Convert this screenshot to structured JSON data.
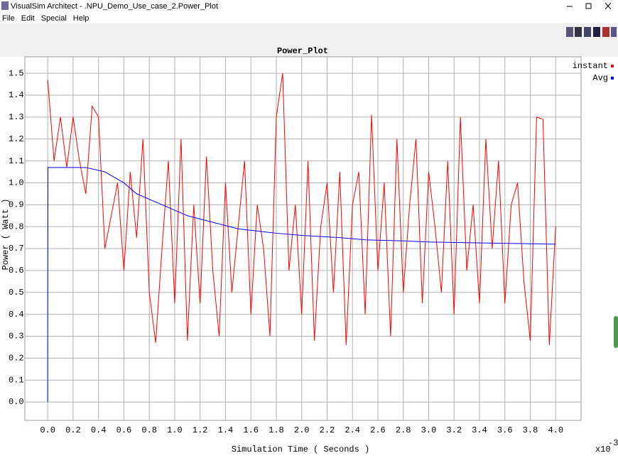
{
  "window": {
    "title": "VisualSim Architect - .NPU_Demo_Use_case_2.Power_Plot"
  },
  "menu": [
    "File",
    "Edit",
    "Special",
    "Help"
  ],
  "chart_data": {
    "type": "line",
    "title": "Power_Plot",
    "x_label": "Simulation Time ( Seconds )",
    "y_label": "Power ( Watt )",
    "x_multiplier": "x10",
    "x_exponent": "-3",
    "xlim": [
      -0.18,
      4.2
    ],
    "ylim": [
      -0.084,
      1.575
    ],
    "grid": true,
    "legend": "top-right",
    "xticks": [
      {
        "value": 0,
        "label": "0.0"
      },
      0.2,
      0.4,
      0.6,
      0.8,
      {
        "value": 1,
        "label": "1.0"
      },
      1.2,
      1.4,
      1.6,
      1.8,
      {
        "value": 2,
        "label": "2.0"
      },
      2.2,
      2.4,
      2.6,
      2.8,
      {
        "value": 3,
        "label": "3.0"
      },
      3.2,
      3.4,
      3.6,
      3.8,
      {
        "value": 4,
        "label": "4.0"
      }
    ],
    "yticks": [
      {
        "value": 0,
        "label": "0.0"
      },
      0.1,
      0.2,
      0.3,
      0.4,
      0.5,
      0.6,
      0.7,
      0.8,
      0.9,
      {
        "value": 1,
        "label": "1.0"
      },
      1.1,
      1.2,
      1.3,
      1.4,
      1.5
    ],
    "series": [
      {
        "name": "instant",
        "color": "#ff0000",
        "x": [
          0,
          0.05,
          0.1,
          0.15,
          0.2,
          0.25,
          0.3,
          0.35,
          0.4,
          0.45,
          0.5,
          0.55,
          0.6,
          0.65,
          0.7,
          0.75,
          0.8,
          0.85,
          0.9,
          0.95,
          1.0,
          1.05,
          1.1,
          1.15,
          1.2,
          1.25,
          1.3,
          1.35,
          1.4,
          1.45,
          1.5,
          1.55,
          1.6,
          1.65,
          1.7,
          1.75,
          1.8,
          1.85,
          1.9,
          1.95,
          2.0,
          2.05,
          2.1,
          2.15,
          2.2,
          2.25,
          2.3,
          2.35,
          2.4,
          2.45,
          2.5,
          2.55,
          2.6,
          2.65,
          2.7,
          2.75,
          2.8,
          2.85,
          2.9,
          2.95,
          3.0,
          3.05,
          3.1,
          3.15,
          3.2,
          3.25,
          3.3,
          3.35,
          3.4,
          3.45,
          3.5,
          3.55,
          3.6,
          3.65,
          3.7,
          3.75,
          3.8,
          3.85,
          3.9,
          3.95,
          4.0
        ],
        "values": [
          1.47,
          1.1,
          1.3,
          1.07,
          1.3,
          1.1,
          0.95,
          1.35,
          1.3,
          0.7,
          0.85,
          1.0,
          0.6,
          1.05,
          0.75,
          1.2,
          0.5,
          0.27,
          0.7,
          1.1,
          0.45,
          1.2,
          0.28,
          0.9,
          0.45,
          1.12,
          0.6,
          0.3,
          1.0,
          0.5,
          0.8,
          1.1,
          0.4,
          0.9,
          0.7,
          0.3,
          1.3,
          1.5,
          0.6,
          0.9,
          0.4,
          1.1,
          0.28,
          0.8,
          1.0,
          0.5,
          1.05,
          0.26,
          0.9,
          1.05,
          0.4,
          1.31,
          0.6,
          1.0,
          0.3,
          1.2,
          0.5,
          0.9,
          1.2,
          0.45,
          1.05,
          0.8,
          0.5,
          1.1,
          0.4,
          1.3,
          0.6,
          0.9,
          0.45,
          1.2,
          0.7,
          1.1,
          0.45,
          0.9,
          1.0,
          0.55,
          0.28,
          1.3,
          1.29,
          0.26,
          0.8
        ]
      },
      {
        "name": "Avg",
        "color": "#0000ff",
        "x": [
          0,
          0,
          0.002,
          0.3,
          0.45,
          0.6,
          0.7,
          0.9,
          1.1,
          1.3,
          1.5,
          1.8,
          2.0,
          2.3,
          2.5,
          2.8,
          3.0,
          3.5,
          4.0
        ],
        "values": [
          0,
          0.27,
          1.07,
          1.07,
          1.05,
          1.0,
          0.95,
          0.9,
          0.85,
          0.82,
          0.79,
          0.77,
          0.76,
          0.75,
          0.74,
          0.735,
          0.73,
          0.725,
          0.72
        ]
      }
    ]
  }
}
